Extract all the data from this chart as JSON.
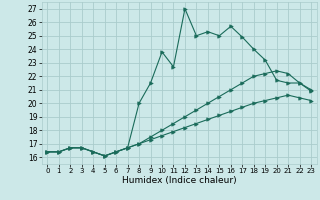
{
  "xlabel": "Humidex (Indice chaleur)",
  "xlim": [
    -0.5,
    23.5
  ],
  "ylim": [
    15.5,
    27.5
  ],
  "xticks": [
    0,
    1,
    2,
    3,
    4,
    5,
    6,
    7,
    8,
    9,
    10,
    11,
    12,
    13,
    14,
    15,
    16,
    17,
    18,
    19,
    20,
    21,
    22,
    23
  ],
  "yticks": [
    16,
    17,
    18,
    19,
    20,
    21,
    22,
    23,
    24,
    25,
    26,
    27
  ],
  "bg_color": "#cce8e8",
  "grid_color": "#aacccc",
  "line_color": "#1a6b5a",
  "line1_x": [
    0,
    1,
    2,
    3,
    4,
    5,
    6,
    7,
    8,
    9,
    10,
    11,
    12,
    13,
    14,
    15,
    16,
    17,
    18,
    19,
    20,
    21,
    22,
    23
  ],
  "line1_y": [
    16.4,
    16.4,
    16.7,
    16.7,
    16.4,
    16.1,
    16.4,
    16.7,
    20.0,
    21.5,
    23.8,
    22.7,
    27.0,
    25.0,
    25.3,
    25.0,
    25.7,
    24.9,
    24.0,
    23.2,
    21.7,
    21.5,
    21.5,
    20.9
  ],
  "line2_x": [
    0,
    1,
    2,
    3,
    4,
    5,
    6,
    7,
    8,
    9,
    10,
    11,
    12,
    13,
    14,
    15,
    16,
    17,
    18,
    19,
    20,
    21,
    22,
    23
  ],
  "line2_y": [
    16.4,
    16.4,
    16.7,
    16.7,
    16.4,
    16.1,
    16.4,
    16.7,
    17.0,
    17.5,
    18.0,
    18.5,
    19.0,
    19.5,
    20.0,
    20.5,
    21.0,
    21.5,
    22.0,
    22.2,
    22.4,
    22.2,
    21.5,
    21.0
  ],
  "line3_x": [
    0,
    1,
    2,
    3,
    4,
    5,
    6,
    7,
    8,
    9,
    10,
    11,
    12,
    13,
    14,
    15,
    16,
    17,
    18,
    19,
    20,
    21,
    22,
    23
  ],
  "line3_y": [
    16.4,
    16.4,
    16.7,
    16.7,
    16.4,
    16.1,
    16.4,
    16.7,
    17.0,
    17.3,
    17.6,
    17.9,
    18.2,
    18.5,
    18.8,
    19.1,
    19.4,
    19.7,
    20.0,
    20.2,
    20.4,
    20.6,
    20.4,
    20.2
  ],
  "marker": ">",
  "markersize": 2.5,
  "linewidth": 0.8
}
